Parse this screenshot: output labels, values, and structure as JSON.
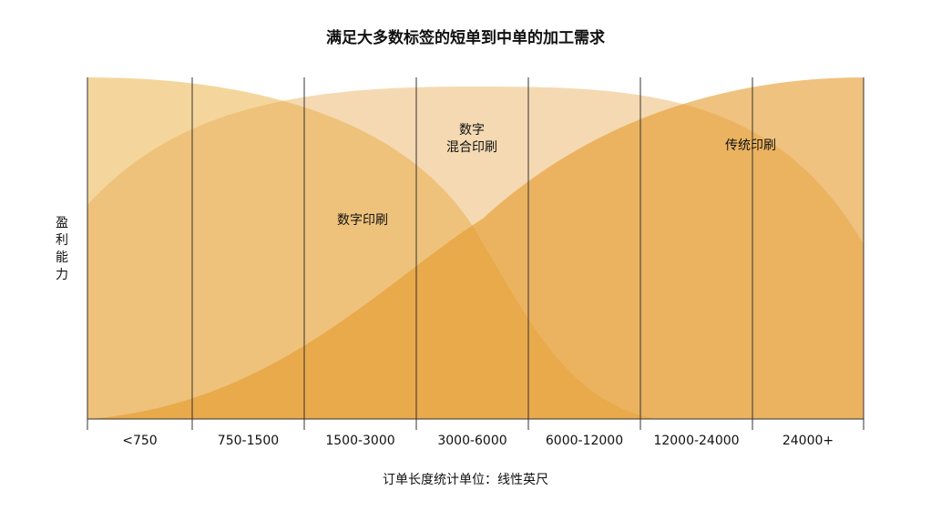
{
  "title": "满足大多数标签的短单到中单的加工需求",
  "y_label": "盈利能力",
  "x_label": "订单长度统计单位：线性英尺",
  "categories": [
    "<750",
    "750-1500",
    "1500-3000",
    "3000-6000",
    "6000-12000",
    "12000-24000",
    "24000+"
  ],
  "regions": [
    {
      "label_lines": [
        "数字印刷"
      ]
    },
    {
      "label_lines": [
        "数字",
        "混合印刷"
      ]
    },
    {
      "label_lines": [
        "传统印刷"
      ]
    }
  ]
}
